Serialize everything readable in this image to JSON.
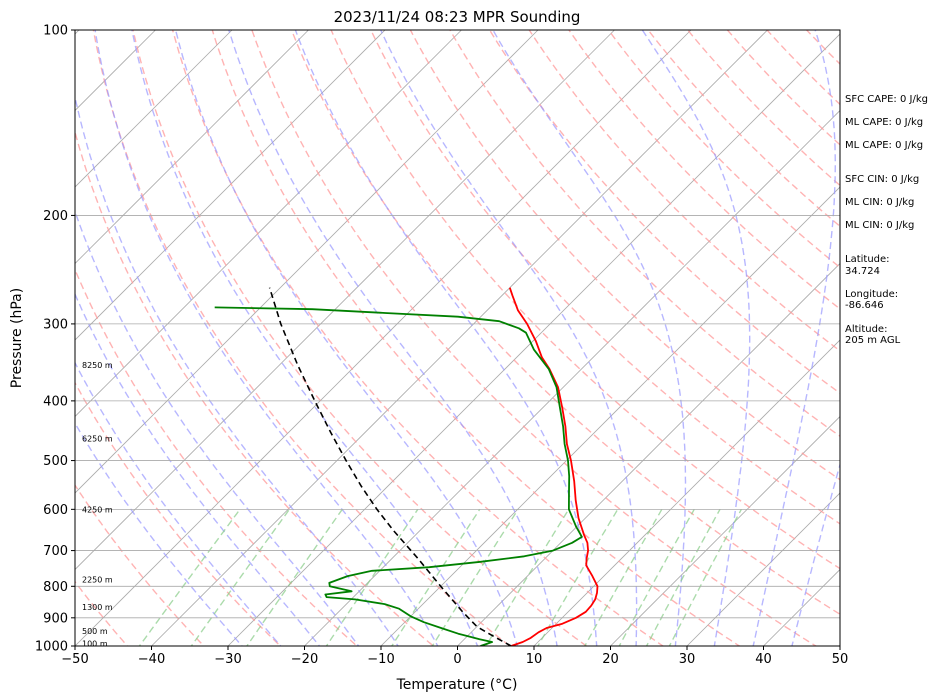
{
  "chart_data": {
    "type": "line",
    "title": "2023/11/24 08:23 MPR Sounding",
    "xlabel": "Temperature (°C)",
    "ylabel": "Pressure (hPa)",
    "xlim": [
      -50,
      50
    ],
    "ylim": [
      1000,
      100
    ],
    "yscale": "log",
    "skew": "skew-t",
    "grid": true,
    "x_ticks": [
      -50,
      -40,
      -30,
      -20,
      -10,
      0,
      10,
      20,
      30,
      40,
      50
    ],
    "y_ticks": [
      1000,
      900,
      800,
      700,
      600,
      500,
      400,
      300,
      200,
      100
    ],
    "colors": {
      "temperature": "#ff0000",
      "dewpoint": "#008000",
      "parcel": "#000000",
      "dry_adiabats": "#ff9999",
      "moist_adiabats": "#9999ff",
      "mixing_ratio": "#88cc88",
      "isotherms": "#aaaaaa"
    },
    "series": [
      {
        "name": "",
        "role": "temperature",
        "points": [
          {
            "p": 1000,
            "t": 7.0
          },
          {
            "p": 985,
            "t": 8.0
          },
          {
            "p": 970,
            "t": 8.5
          },
          {
            "p": 950,
            "t": 8.8
          },
          {
            "p": 935,
            "t": 9.3
          },
          {
            "p": 920,
            "t": 10.8
          },
          {
            "p": 900,
            "t": 11.8
          },
          {
            "p": 880,
            "t": 12.3
          },
          {
            "p": 860,
            "t": 12.2
          },
          {
            "p": 840,
            "t": 11.9
          },
          {
            "p": 820,
            "t": 11.3
          },
          {
            "p": 800,
            "t": 10.5
          },
          {
            "p": 770,
            "t": 8.5
          },
          {
            "p": 740,
            "t": 6.3
          },
          {
            "p": 720,
            "t": 5.4
          },
          {
            "p": 700,
            "t": 4.6
          },
          {
            "p": 680,
            "t": 3.5
          },
          {
            "p": 660,
            "t": 2.0
          },
          {
            "p": 620,
            "t": -0.9
          },
          {
            "p": 580,
            "t": -3.6
          },
          {
            "p": 540,
            "t": -6.3
          },
          {
            "p": 500,
            "t": -9.4
          },
          {
            "p": 470,
            "t": -12.1
          },
          {
            "p": 440,
            "t": -14.6
          },
          {
            "p": 410,
            "t": -17.5
          },
          {
            "p": 380,
            "t": -20.7
          },
          {
            "p": 355,
            "t": -24.2
          },
          {
            "p": 340,
            "t": -26.7
          },
          {
            "p": 320,
            "t": -29.6
          },
          {
            "p": 300,
            "t": -33.0
          },
          {
            "p": 285,
            "t": -36.0
          },
          {
            "p": 270,
            "t": -38.6
          },
          {
            "p": 262,
            "t": -40.0
          }
        ]
      },
      {
        "name": "",
        "role": "dewpoint",
        "points": [
          {
            "p": 1000,
            "t": 3.0
          },
          {
            "p": 985,
            "t": 4.0
          },
          {
            "p": 975,
            "t": 2.0
          },
          {
            "p": 955,
            "t": -1.5
          },
          {
            "p": 935,
            "t": -4.5
          },
          {
            "p": 915,
            "t": -7.5
          },
          {
            "p": 895,
            "t": -10.0
          },
          {
            "p": 870,
            "t": -12.5
          },
          {
            "p": 855,
            "t": -15.0
          },
          {
            "p": 840,
            "t": -19.5
          },
          {
            "p": 833,
            "t": -23.5
          },
          {
            "p": 825,
            "t": -24.0
          },
          {
            "p": 815,
            "t": -21.0
          },
          {
            "p": 800,
            "t": -24.5
          },
          {
            "p": 790,
            "t": -25.0
          },
          {
            "p": 770,
            "t": -23.5
          },
          {
            "p": 755,
            "t": -21.0
          },
          {
            "p": 745,
            "t": -14.0
          },
          {
            "p": 730,
            "t": -8.0
          },
          {
            "p": 715,
            "t": -3.0
          },
          {
            "p": 700,
            "t": 0.0
          },
          {
            "p": 680,
            "t": 1.5
          },
          {
            "p": 665,
            "t": 2.0
          },
          {
            "p": 640,
            "t": -0.1
          },
          {
            "p": 600,
            "t": -3.3
          },
          {
            "p": 560,
            "t": -5.7
          },
          {
            "p": 530,
            "t": -7.6
          },
          {
            "p": 500,
            "t": -9.8
          },
          {
            "p": 470,
            "t": -12.4
          },
          {
            "p": 440,
            "t": -14.9
          },
          {
            "p": 410,
            "t": -17.8
          },
          {
            "p": 380,
            "t": -20.9
          },
          {
            "p": 355,
            "t": -24.3
          },
          {
            "p": 330,
            "t": -28.8
          },
          {
            "p": 310,
            "t": -32.0
          },
          {
            "p": 305,
            "t": -33.5
          },
          {
            "p": 297,
            "t": -37.0
          },
          {
            "p": 292,
            "t": -43.0
          },
          {
            "p": 288,
            "t": -53.0
          },
          {
            "p": 284,
            "t": -63.0
          },
          {
            "p": 282,
            "t": -76.0
          }
        ]
      },
      {
        "name": "",
        "role": "parcel",
        "points": [
          {
            "p": 1000,
            "t": 7.0
          },
          {
            "p": 960,
            "t": 3.0
          },
          {
            "p": 930,
            "t": 0.0
          },
          {
            "p": 880,
            "t": -3.8
          },
          {
            "p": 800,
            "t": -10.0
          },
          {
            "p": 720,
            "t": -16.7
          },
          {
            "p": 650,
            "t": -23.4
          },
          {
            "p": 600,
            "t": -28.4
          },
          {
            "p": 550,
            "t": -33.5
          },
          {
            "p": 500,
            "t": -38.8
          },
          {
            "p": 450,
            "t": -44.5
          },
          {
            "p": 400,
            "t": -50.7
          },
          {
            "p": 350,
            "t": -57.6
          },
          {
            "p": 300,
            "t": -65.2
          },
          {
            "p": 262,
            "t": -71.4
          }
        ]
      }
    ],
    "height_labels": [
      {
        "p": 990,
        "text": "100 m"
      },
      {
        "p": 945,
        "text": "500 m"
      },
      {
        "p": 865,
        "text": "1300 m"
      },
      {
        "p": 780,
        "text": "2250 m"
      },
      {
        "p": 600,
        "text": "4250 m"
      },
      {
        "p": 460,
        "text": "6250 m"
      },
      {
        "p": 350,
        "text": "8250 m"
      }
    ]
  },
  "side_panel": [
    "SFC CAPE: 0 J/kg",
    "ML CAPE: 0 J/kg",
    "ML CAPE: 0 J/kg",
    "SFC CIN: 0 J/kg",
    "ML CIN: 0 J/kg",
    "ML CIN: 0 J/kg",
    "Latitude:",
    "34.724",
    "Longitude:",
    "-86.646",
    "Altitude:",
    "205 m AGL"
  ]
}
